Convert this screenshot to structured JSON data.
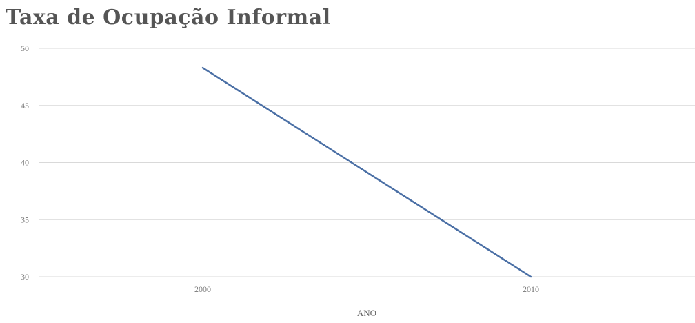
{
  "chart_data": {
    "type": "line",
    "title": "Taxa de Ocupação Informal",
    "xlabel": "ANO",
    "ylabel": "",
    "categories": [
      "2000",
      "2010"
    ],
    "series": [
      {
        "values": [
          48.3,
          30.0
        ]
      }
    ],
    "yticks": [
      "30",
      "35",
      "40",
      "45",
      "50"
    ],
    "ylim": [
      30,
      50
    ],
    "grid": true,
    "legend": "none",
    "colors": {
      "line": "#4a6fa5",
      "grid": "#d9d9d9"
    }
  }
}
